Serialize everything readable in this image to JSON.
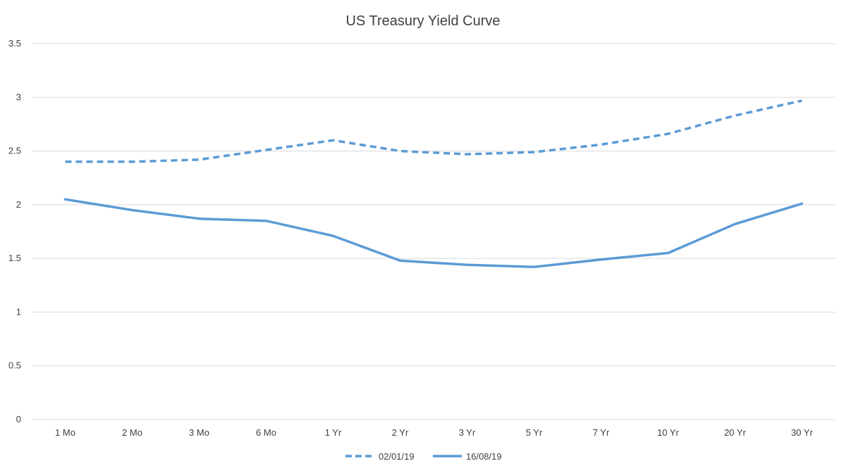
{
  "chart_data": {
    "type": "line",
    "title": "US Treasury Yield Curve",
    "xlabel": "",
    "ylabel": "",
    "categories": [
      "1 Mo",
      "2 Mo",
      "3 Mo",
      "6 Mo",
      "1 Yr",
      "2 Yr",
      "3 Yr",
      "5 Yr",
      "7 Yr",
      "10 Yr",
      "20 Yr",
      "30 Yr"
    ],
    "ylim": [
      0,
      3.5
    ],
    "yticks": [
      "0",
      "0.5",
      "1",
      "1.5",
      "2",
      "2.5",
      "3",
      "3.5"
    ],
    "grid": true,
    "legend_position": "bottom",
    "series_color": "#5b9bd5",
    "series": [
      {
        "name": "02/01/19",
        "style": "dashed",
        "values": [
          2.4,
          2.4,
          2.42,
          2.51,
          2.6,
          2.5,
          2.47,
          2.49,
          2.56,
          2.66,
          2.83,
          2.97
        ]
      },
      {
        "name": "16/08/19",
        "style": "solid",
        "values": [
          2.05,
          1.95,
          1.87,
          1.85,
          1.71,
          1.48,
          1.44,
          1.42,
          1.49,
          1.55,
          1.82,
          2.01
        ]
      }
    ]
  }
}
